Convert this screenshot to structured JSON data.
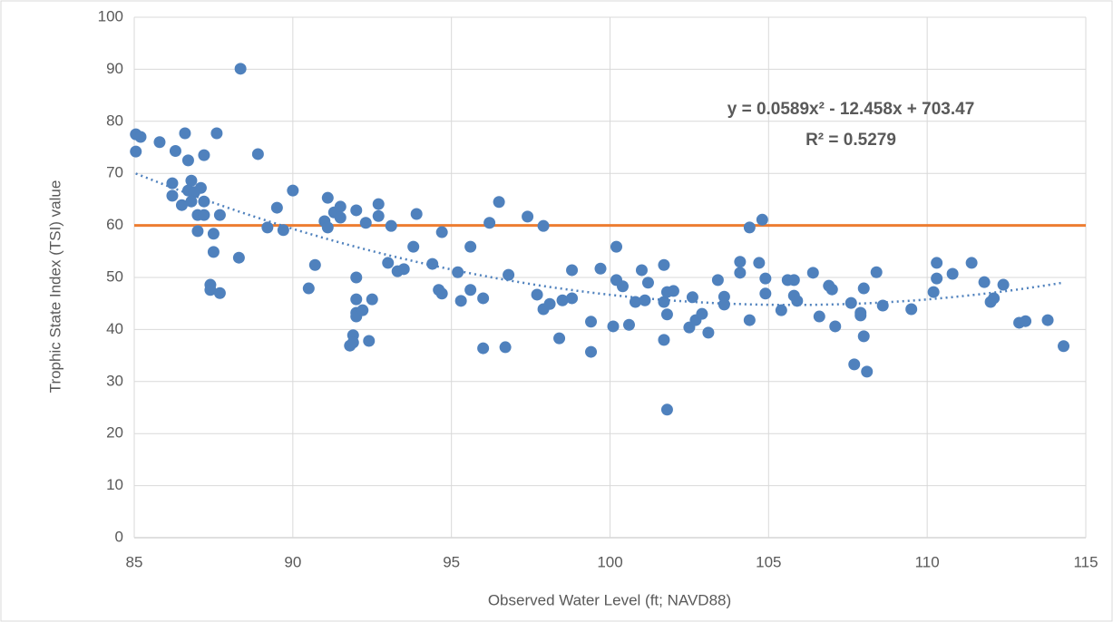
{
  "chart_data": {
    "type": "scatter",
    "x_label": "Observed Water Level (ft; NAVD88)",
    "y_label": "Trophic State Index (TSI) value",
    "x": [
      85.05,
      85.2,
      85.05,
      85.8,
      86.3,
      86.6,
      87.6,
      87.2,
      86.7,
      86.2,
      86.2,
      86.5,
      86.8,
      86.7,
      86.9,
      87.1,
      87.2,
      86.8,
      87.0,
      87.2,
      87.7,
      87.0,
      87.5,
      87.5,
      87.4,
      87.4,
      87.7,
      88.3,
      88.35,
      88.9,
      89.2,
      89.5,
      89.7,
      90.0,
      90.7,
      90.5,
      91.1,
      91.0,
      91.1,
      91.3,
      91.5,
      91.5,
      92.0,
      92.3,
      92.7,
      92.7,
      93.1,
      93.0,
      93.3,
      93.5,
      93.9,
      93.8,
      94.4,
      94.7,
      94.6,
      94.7,
      92.0,
      92.0,
      92.0,
      92.0,
      92.2,
      92.5,
      91.9,
      91.8,
      91.9,
      92.4,
      95.2,
      95.3,
      95.6,
      95.6,
      96.0,
      96.0,
      96.2,
      96.5,
      96.8,
      96.7,
      97.4,
      97.9,
      97.7,
      97.9,
      98.1,
      98.4,
      98.5,
      98.8,
      98.8,
      99.7,
      99.4,
      99.4,
      100.2,
      100.2,
      100.4,
      100.1,
      100.6,
      100.8,
      101.0,
      101.1,
      101.2,
      101.7,
      101.7,
      101.8,
      102.0,
      101.8,
      101.7,
      101.8,
      102.6,
      102.5,
      102.7,
      102.9,
      103.1,
      103.4,
      103.6,
      103.6,
      104.1,
      104.1,
      104.4,
      104.8,
      104.7,
      104.4,
      104.9,
      104.9,
      105.4,
      105.6,
      105.8,
      105.8,
      105.9,
      106.4,
      106.6,
      106.9,
      107.0,
      107.1,
      107.6,
      107.7,
      107.9,
      107.9,
      108.0,
      108.0,
      108.1,
      108.4,
      108.6,
      109.5,
      110.3,
      110.3,
      110.2,
      110.8,
      111.4,
      111.8,
      112.0,
      112.1,
      112.4,
      112.9,
      113.1,
      113.8,
      114.3
    ],
    "values": [
      77.5,
      77.0,
      74.2,
      76.0,
      74.3,
      77.7,
      77.7,
      73.5,
      72.5,
      68.1,
      65.7,
      63.9,
      68.6,
      66.7,
      66.4,
      67.2,
      64.6,
      64.6,
      62.0,
      62.0,
      62.0,
      58.9,
      58.4,
      54.9,
      48.6,
      47.6,
      47.0,
      53.8,
      90.1,
      73.7,
      59.6,
      63.4,
      59.1,
      66.7,
      52.4,
      47.9,
      65.3,
      60.8,
      59.6,
      62.5,
      63.6,
      61.5,
      62.9,
      60.5,
      64.1,
      61.8,
      59.9,
      52.8,
      51.2,
      51.6,
      62.2,
      55.9,
      52.6,
      58.7,
      47.6,
      46.9,
      50.0,
      45.8,
      43.2,
      42.5,
      43.7,
      45.8,
      38.9,
      36.9,
      37.5,
      37.8,
      51.0,
      45.5,
      55.9,
      47.6,
      46.0,
      36.4,
      60.5,
      64.5,
      50.5,
      36.6,
      61.7,
      59.9,
      46.7,
      43.9,
      44.9,
      38.3,
      45.6,
      51.4,
      46.0,
      51.7,
      41.5,
      35.7,
      55.9,
      49.5,
      48.3,
      40.6,
      40.9,
      45.3,
      51.4,
      45.6,
      49.0,
      45.3,
      52.4,
      47.2,
      47.4,
      42.9,
      38.0,
      24.6,
      46.2,
      40.4,
      41.8,
      43.0,
      39.4,
      49.5,
      44.8,
      46.3,
      53.0,
      50.9,
      59.6,
      61.1,
      52.8,
      41.8,
      49.8,
      46.9,
      43.7,
      49.5,
      49.5,
      46.5,
      45.5,
      50.9,
      42.5,
      48.4,
      47.7,
      40.6,
      45.1,
      33.3,
      43.2,
      42.7,
      47.9,
      38.7,
      31.9,
      51.0,
      44.6,
      43.9,
      52.8,
      49.8,
      47.2,
      50.7,
      52.8,
      49.1,
      45.3,
      46.0,
      48.6,
      41.3,
      41.6,
      41.8,
      36.8
    ],
    "color": "#4f81bd",
    "xlim": [
      85,
      115
    ],
    "xticks": [
      85,
      90,
      95,
      100,
      105,
      110,
      115
    ],
    "ylim": [
      0,
      100
    ],
    "yticks": [
      0,
      10,
      20,
      30,
      40,
      50,
      60,
      70,
      80,
      90,
      100
    ],
    "grid": true,
    "reference_line": {
      "value": 60,
      "color": "#ed7d31"
    },
    "trendline": {
      "coefficients": [
        0.0589,
        -12.458,
        703.47
      ],
      "color": "#4f81bd"
    },
    "annotations": [
      "y = 0.0589x² - 12.458x + 703.47",
      "R² = 0.5279"
    ]
  }
}
